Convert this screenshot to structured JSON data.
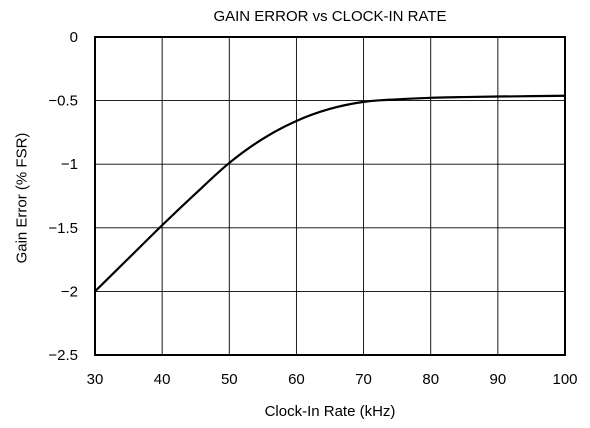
{
  "chart_data": {
    "type": "line",
    "title": "GAIN ERROR vs CLOCK-IN RATE",
    "xlabel": "Clock-In Rate (kHz)",
    "ylabel": "Gain Error (% FSR)",
    "xlim": [
      30,
      100
    ],
    "ylim": [
      -2.5,
      0
    ],
    "xticks": [
      30,
      40,
      50,
      60,
      70,
      80,
      90,
      100
    ],
    "yticks": [
      0,
      -0.5,
      -1,
      -1.5,
      -2,
      -2.5
    ],
    "ytick_labels": [
      "0",
      "−0.5",
      "−1",
      "−1.5",
      "−2",
      "−2.5"
    ],
    "grid": true,
    "series": [
      {
        "color": "#000000",
        "x": [
          30,
          35,
          40,
          45,
          50,
          55,
          60,
          65,
          70,
          75,
          80,
          85,
          90,
          95,
          100
        ],
        "y": [
          -2.0,
          -1.74,
          -1.48,
          -1.23,
          -0.99,
          -0.8,
          -0.66,
          -0.565,
          -0.51,
          -0.49,
          -0.478,
          -0.472,
          -0.468,
          -0.465,
          -0.462
        ]
      }
    ]
  }
}
